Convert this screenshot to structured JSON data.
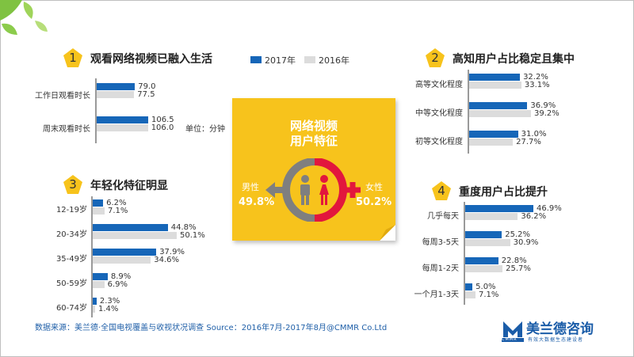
{
  "legend": {
    "s2017": "2017年",
    "s2016": "2016年"
  },
  "colors": {
    "s2017": "#1666b8",
    "s2016": "#dcdcdc",
    "card": "#f7c31c",
    "female": "#e2173d",
    "male": "#7f7f7f"
  },
  "unit_note": "单位：分钟",
  "center_card": {
    "title_line1": "网络视频",
    "title_line2": "用户特征",
    "male_label": "男性",
    "male_value": "49.8%",
    "female_label": "女性",
    "female_value": "50.2%"
  },
  "source": "数据来源：美兰德·全国电视覆盖与收视状况调查 Source：2016年7月-2017年8月@CMMR Co.Ltd",
  "logo": {
    "name": "美兰德咨询",
    "mark": "CMMR",
    "slogan": "有效大数据生态建设者"
  },
  "chart_data": [
    {
      "type": "bar",
      "number": "1",
      "title": "观看网络视频已融入生活",
      "categories": [
        "工作日观看时长",
        "周末观看时长"
      ],
      "series": [
        {
          "name": "2017年",
          "values": [
            79.0,
            106.5
          ],
          "labels": [
            "79.0",
            "106.5"
          ]
        },
        {
          "name": "2016年",
          "values": [
            77.5,
            106.0
          ],
          "labels": [
            "77.5",
            "106.0"
          ]
        }
      ],
      "xlim": [
        0,
        106.5
      ]
    },
    {
      "type": "bar",
      "number": "2",
      "title": "高知用户占比稳定且集中",
      "categories": [
        "高等文化程度",
        "中等文化程度",
        "初等文化程度"
      ],
      "series": [
        {
          "name": "2017年",
          "values": [
            32.2,
            36.9,
            31.0
          ],
          "labels": [
            "32.2%",
            "36.9%",
            "31.0%"
          ]
        },
        {
          "name": "2016年",
          "values": [
            33.1,
            39.2,
            27.7
          ],
          "labels": [
            "33.1%",
            "39.2%",
            "27.7%"
          ]
        }
      ],
      "xlim": [
        0,
        39.2
      ]
    },
    {
      "type": "bar",
      "number": "3",
      "title": "年轻化特征明显",
      "categories": [
        "12-19岁",
        "20-34岁",
        "35-49岁",
        "50-59岁",
        "60-74岁"
      ],
      "series": [
        {
          "name": "2017年",
          "values": [
            6.2,
            44.8,
            37.9,
            8.9,
            2.3
          ],
          "labels": [
            "6.2%",
            "44.8%",
            "37.9%",
            "8.9%",
            "2.3%"
          ]
        },
        {
          "name": "2016年",
          "values": [
            7.1,
            50.1,
            34.6,
            6.9,
            1.4
          ],
          "labels": [
            "7.1%",
            "50.1%",
            "34.6%",
            "6.9%",
            "1.4%"
          ]
        }
      ],
      "xlim": [
        0,
        50.1
      ]
    },
    {
      "type": "bar",
      "number": "4",
      "title": "重度用户占比提升",
      "categories": [
        "几乎每天",
        "每周3-5天",
        "每周1-2天",
        "一个月1-3天"
      ],
      "series": [
        {
          "name": "2017年",
          "values": [
            46.9,
            25.2,
            22.8,
            5.0
          ],
          "labels": [
            "46.9%",
            "25.2%",
            "22.8%",
            "5.0%"
          ]
        },
        {
          "name": "2016年",
          "values": [
            36.2,
            30.9,
            25.7,
            7.1
          ],
          "labels": [
            "36.2%",
            "30.9%",
            "25.7%",
            "7.1%"
          ]
        }
      ],
      "xlim": [
        0,
        46.9
      ]
    }
  ]
}
